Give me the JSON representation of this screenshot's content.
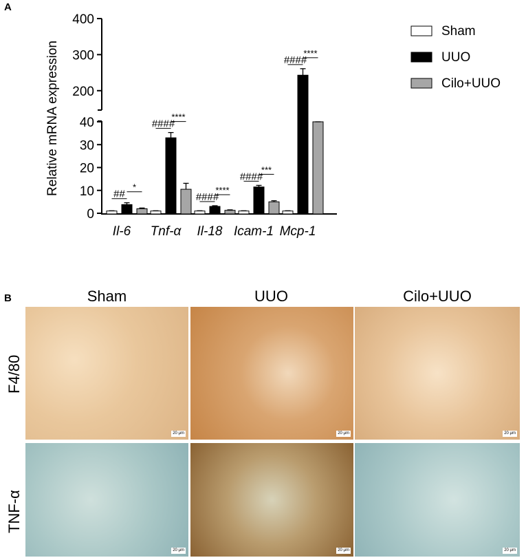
{
  "panels": {
    "a": "A",
    "b": "B"
  },
  "chart_data": {
    "type": "bar",
    "ylabel": "Relative mRNA expression",
    "ylim": [
      0,
      400
    ],
    "axis_break": [
      40,
      150
    ],
    "lower_ticks": [
      0,
      10,
      20,
      30,
      40
    ],
    "upper_ticks": [
      200,
      300,
      400
    ],
    "categories": [
      "Il-6",
      "Tnf-α",
      "Il-18",
      "Icam-1",
      "Mcp-1"
    ],
    "series": [
      {
        "name": "Sham",
        "color": "#ffffff",
        "values": [
          1,
          1,
          1,
          1,
          1
        ],
        "errors": [
          0.1,
          0.1,
          0.1,
          0.1,
          0.1
        ]
      },
      {
        "name": "UUO",
        "color": "#000000",
        "values": [
          3.8,
          33,
          3.0,
          11.5,
          243
        ],
        "errors": [
          0.8,
          2.3,
          0.3,
          0.7,
          18
        ]
      },
      {
        "name": "Cilo+UUO",
        "color": "#a6a6a6",
        "values": [
          2.0,
          10.5,
          1.3,
          5.0,
          133
        ],
        "errors": [
          0.3,
          2.6,
          0.2,
          0.5,
          14
        ]
      }
    ],
    "significance": [
      {
        "uuo_vs_sham": "##",
        "cilo_vs_uuo": "*"
      },
      {
        "uuo_vs_sham": "####",
        "cilo_vs_uuo": "****"
      },
      {
        "uuo_vs_sham": "####",
        "cilo_vs_uuo": "****"
      },
      {
        "uuo_vs_sham": "####",
        "cilo_vs_uuo": "***"
      },
      {
        "uuo_vs_sham": "####",
        "cilo_vs_uuo": "****"
      }
    ],
    "legend_position": "top-right"
  },
  "micrographs": {
    "columns": [
      "Sham",
      "UUO",
      "Cilo+UUO"
    ],
    "rows": [
      "F4/80",
      "TNF-α"
    ],
    "scale_bar": "20 μm"
  }
}
